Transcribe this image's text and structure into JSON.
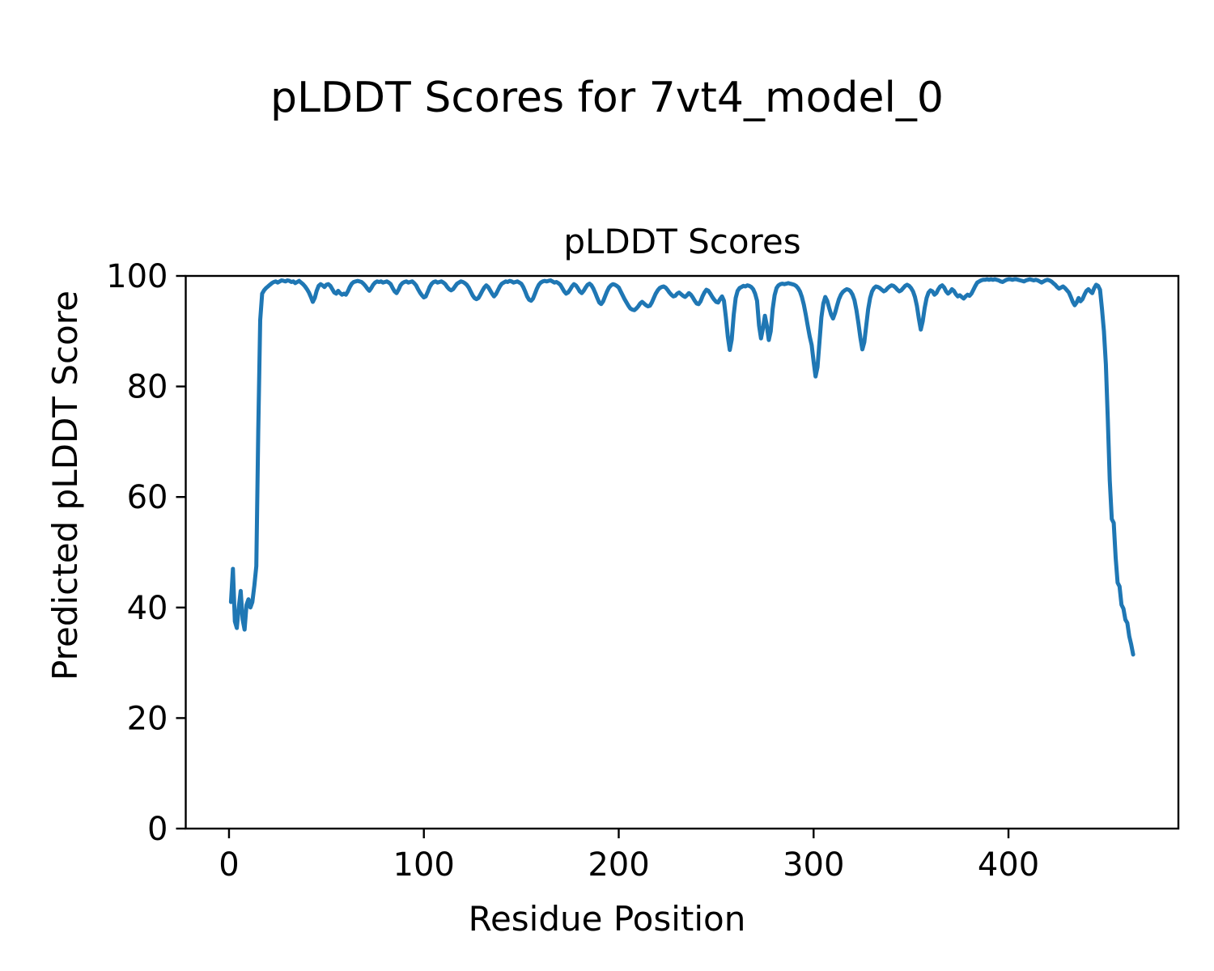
{
  "figure": {
    "title": "pLDDT Scores for 7vt4_model_0",
    "background_color": "#ffffff"
  },
  "chart_data": {
    "type": "line",
    "title": "pLDDT Scores",
    "xlabel": "Residue Position",
    "ylabel": "Predicted pLDDT Score",
    "xticks": [
      0,
      100,
      200,
      300,
      400
    ],
    "yticks": [
      0,
      20,
      40,
      60,
      80,
      100
    ],
    "xlim": [
      -22.2,
      487.2
    ],
    "ylim": [
      0,
      100
    ],
    "grid": false,
    "legend": null,
    "line_color": "#1f77b4",
    "axis_color": "#000000",
    "x_start": 1,
    "x_step": 1,
    "series": [
      {
        "name": "pLDDT",
        "values": [
          41.0,
          47.0,
          37.5,
          36.3,
          40.0,
          43.0,
          37.8,
          36.0,
          40.5,
          41.5,
          40.0,
          41.0,
          44.0,
          47.5,
          72.0,
          92.0,
          96.8,
          97.4,
          97.8,
          98.1,
          98.4,
          98.7,
          98.9,
          99.0,
          98.8,
          99.0,
          99.2,
          99.1,
          99.0,
          99.2,
          99.1,
          98.9,
          99.0,
          98.7,
          98.9,
          99.1,
          98.8,
          98.5,
          98.1,
          97.6,
          97.0,
          96.2,
          95.3,
          96.0,
          97.3,
          98.2,
          98.5,
          98.3,
          98.0,
          98.4,
          98.5,
          98.2,
          97.6,
          97.0,
          96.8,
          97.3,
          96.9,
          96.6,
          96.8,
          96.6,
          97.2,
          98.0,
          98.6,
          98.9,
          99.0,
          99.1,
          99.0,
          98.9,
          98.6,
          98.2,
          97.7,
          97.3,
          97.8,
          98.4,
          98.8,
          99.0,
          98.9,
          99.0,
          98.8,
          98.9,
          99.0,
          98.8,
          98.5,
          97.8,
          97.2,
          96.9,
          97.5,
          98.3,
          98.7,
          98.9,
          99.0,
          98.8,
          98.9,
          99.0,
          98.7,
          98.3,
          97.6,
          97.0,
          96.5,
          96.1,
          96.3,
          97.1,
          98.0,
          98.6,
          98.9,
          99.0,
          98.8,
          98.9,
          99.0,
          98.8,
          98.5,
          98.0,
          97.6,
          97.4,
          97.6,
          98.1,
          98.6,
          98.8,
          99.0,
          98.9,
          98.7,
          98.4,
          97.9,
          97.2,
          96.5,
          96.0,
          95.8,
          96.0,
          96.6,
          97.3,
          97.9,
          98.3,
          98.0,
          97.4,
          96.8,
          96.3,
          96.7,
          97.4,
          98.1,
          98.6,
          98.8,
          99.0,
          98.9,
          99.1,
          99.0,
          98.8,
          98.9,
          99.0,
          98.8,
          98.6,
          98.0,
          97.2,
          96.3,
          95.7,
          95.5,
          95.9,
          96.8,
          97.7,
          98.4,
          98.8,
          99.0,
          99.1,
          99.0,
          99.1,
          99.2,
          99.0,
          98.8,
          98.9,
          98.7,
          98.4,
          97.8,
          97.2,
          96.8,
          97.0,
          97.5,
          98.1,
          98.5,
          98.3,
          97.8,
          97.2,
          96.9,
          97.3,
          97.9,
          98.4,
          98.6,
          98.3,
          97.7,
          96.9,
          96.0,
          95.2,
          94.9,
          95.4,
          96.3,
          97.2,
          97.9,
          98.3,
          98.5,
          98.4,
          98.2,
          97.9,
          97.2,
          96.5,
          95.8,
          95.2,
          94.6,
          94.1,
          93.9,
          93.8,
          94.1,
          94.5,
          95.0,
          95.3,
          95.0,
          94.7,
          94.5,
          94.6,
          95.2,
          96.0,
          96.8,
          97.4,
          97.8,
          98.0,
          98.1,
          97.9,
          97.5,
          97.0,
          96.6,
          96.3,
          96.4,
          96.8,
          97.0,
          96.7,
          96.4,
          96.2,
          96.5,
          96.9,
          96.6,
          96.1,
          95.5,
          95.0,
          94.9,
          95.4,
          96.3,
          97.0,
          97.5,
          97.3,
          96.8,
          96.2,
          95.7,
          95.3,
          95.2,
          95.8,
          96.3,
          95.5,
          92.5,
          89.0,
          86.6,
          88.5,
          93.0,
          96.0,
          97.3,
          97.8,
          98.0,
          98.2,
          98.1,
          98.3,
          98.2,
          98.0,
          97.6,
          96.8,
          95.5,
          91.0,
          88.7,
          90.5,
          92.8,
          91.0,
          88.4,
          90.0,
          94.0,
          96.5,
          97.8,
          98.3,
          98.5,
          98.6,
          98.5,
          98.6,
          98.7,
          98.6,
          98.5,
          98.4,
          98.2,
          97.8,
          97.2,
          96.2,
          94.8,
          93.0,
          91.0,
          89.0,
          87.5,
          84.5,
          81.8,
          83.5,
          88.0,
          92.5,
          95.0,
          96.2,
          95.5,
          94.2,
          93.0,
          92.3,
          93.3,
          94.6,
          95.8,
          96.6,
          97.1,
          97.4,
          97.6,
          97.5,
          97.2,
          96.6,
          95.6,
          93.8,
          91.5,
          88.8,
          86.7,
          88.0,
          91.0,
          94.0,
          96.0,
          97.2,
          97.8,
          98.1,
          98.0,
          97.8,
          97.5,
          97.2,
          97.4,
          97.8,
          98.1,
          98.3,
          98.2,
          97.9,
          97.5,
          97.2,
          97.4,
          97.8,
          98.2,
          98.4,
          98.2,
          97.8,
          97.2,
          96.2,
          94.6,
          92.3,
          90.3,
          91.8,
          94.2,
          96.0,
          97.0,
          97.4,
          97.2,
          96.6,
          96.9,
          97.6,
          98.1,
          98.3,
          97.9,
          97.2,
          96.8,
          97.1,
          97.6,
          97.3,
          96.7,
          96.3,
          96.5,
          96.2,
          95.9,
          96.3,
          96.6,
          96.4,
          96.8,
          97.5,
          98.2,
          98.8,
          99.0,
          99.2,
          99.3,
          99.3,
          99.4,
          99.3,
          99.4,
          99.3,
          99.4,
          99.3,
          99.2,
          99.0,
          98.9,
          99.1,
          99.3,
          99.4,
          99.4,
          99.3,
          99.4,
          99.4,
          99.3,
          99.2,
          99.1,
          99.0,
          99.2,
          99.3,
          99.4,
          99.3,
          99.2,
          99.3,
          99.2,
          99.0,
          98.8,
          99.0,
          99.2,
          99.3,
          99.2,
          99.0,
          98.7,
          98.4,
          98.0,
          97.7,
          97.9,
          98.1,
          97.8,
          97.4,
          97.0,
          96.2,
          95.3,
          94.7,
          95.2,
          96.0,
          95.4,
          95.8,
          96.6,
          97.3,
          97.6,
          97.2,
          96.9,
          97.8,
          98.4,
          98.2,
          97.5,
          94.0,
          90.0,
          84.0,
          74.0,
          63.0,
          56.0,
          55.3,
          49.0,
          44.5,
          43.8,
          40.5,
          39.8,
          37.8,
          37.2,
          34.8,
          33.3,
          31.5
        ]
      }
    ]
  }
}
